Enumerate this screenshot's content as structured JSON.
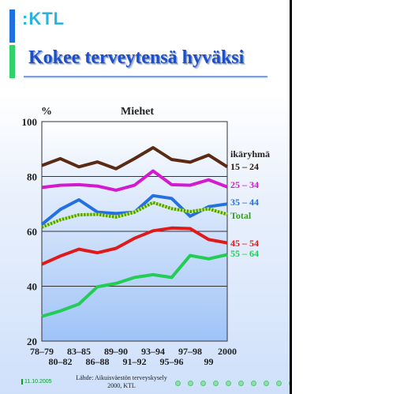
{
  "header": {
    "logo_text": ":KTL",
    "title": "Kokee terveytensä hyväksi"
  },
  "footer": {
    "date": "11.10.2005",
    "source_line1": "Lähde: Aikuisväestön terveyskysely",
    "source_line2": "2000, KTL"
  },
  "colors": {
    "title": "#1d4fc8",
    "accent_blue": "#1f6fe0",
    "accent_green": "#2fd36a"
  },
  "chart_data": {
    "type": "line",
    "title": "Miehet",
    "ylabel": "%",
    "ylim": [
      20,
      100
    ],
    "yticks": [
      20,
      40,
      60,
      80,
      100
    ],
    "grid": true,
    "legend_title": "ikäryhmä",
    "categories": [
      "78–79",
      "80–82",
      "83–85",
      "86–88",
      "89–90",
      "91–92",
      "93–94",
      "95–96",
      "97–98",
      "99",
      "2000"
    ],
    "xtick_labels_row1": [
      "78–79",
      "83–85",
      "89–90",
      "93–94",
      "97–98",
      "2000"
    ],
    "xtick_labels_row2": [
      "80–82",
      "86–88",
      "91–92",
      "95–96",
      "99"
    ],
    "series": [
      {
        "name": "15 – 24",
        "color": "#5b2a12",
        "values": [
          84,
          86.5,
          83.5,
          85.3,
          82.8,
          86.5,
          90.5,
          86.2,
          85.2,
          87.8,
          83.5
        ]
      },
      {
        "name": "25 – 34",
        "color": "#d21ad0",
        "values": [
          76,
          76.8,
          77,
          76.5,
          75,
          76.8,
          82,
          77,
          76.8,
          78.8,
          76.2
        ]
      },
      {
        "name": "35 – 44",
        "color": "#2470e0",
        "values": [
          62.5,
          68,
          71.5,
          67,
          66.5,
          67,
          73,
          72,
          65.5,
          69,
          70
        ]
      },
      {
        "name": "Total",
        "color": "#3c9a2c",
        "pattern": "hatched",
        "values": [
          61.5,
          64.2,
          66,
          66.2,
          65.2,
          67,
          70.5,
          68.3,
          67.2,
          68.2,
          66.2
        ]
      },
      {
        "name": "45 – 54",
        "color": "#e01a1a",
        "values": [
          48,
          51,
          53.5,
          52.2,
          53.8,
          57.5,
          60.2,
          61.2,
          61,
          57,
          55.8
        ]
      },
      {
        "name": "55 – 64",
        "color": "#22cc55",
        "values": [
          29,
          31,
          33.5,
          39.8,
          41,
          43.2,
          44.2,
          43.2,
          51.2,
          50,
          51.5
        ]
      }
    ]
  }
}
